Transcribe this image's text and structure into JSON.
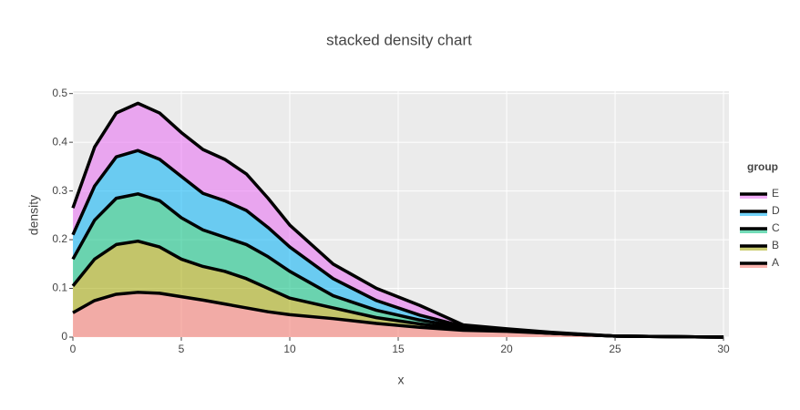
{
  "chart_data": {
    "type": "stacked-area",
    "title": "stacked density chart",
    "x_label": "x",
    "y_label": "density",
    "legend_title": "group",
    "x": [
      0,
      1,
      2,
      3,
      4,
      5,
      6,
      7,
      8,
      9,
      10,
      12,
      14,
      16,
      18,
      20,
      22,
      25,
      30
    ],
    "series": [
      {
        "name": "A",
        "color": "#f8766d",
        "values": [
          0.05,
          0.075,
          0.088,
          0.092,
          0.09,
          0.083,
          0.076,
          0.068,
          0.06,
          0.052,
          0.046,
          0.038,
          0.028,
          0.02,
          0.014,
          0.012,
          0.008,
          0.002,
          0
        ]
      },
      {
        "name": "B",
        "color": "#a3a500",
        "values": [
          0.055,
          0.085,
          0.102,
          0.105,
          0.095,
          0.077,
          0.069,
          0.067,
          0.06,
          0.048,
          0.034,
          0.022,
          0.012,
          0.007,
          0.003,
          0.001,
          0,
          0,
          0
        ]
      },
      {
        "name": "C",
        "color": "#00bf7d",
        "values": [
          0.055,
          0.08,
          0.095,
          0.097,
          0.095,
          0.085,
          0.075,
          0.07,
          0.07,
          0.065,
          0.055,
          0.025,
          0.015,
          0.008,
          0.003,
          0.001,
          0,
          0,
          0
        ]
      },
      {
        "name": "D",
        "color": "#00b0f6",
        "values": [
          0.05,
          0.07,
          0.085,
          0.089,
          0.085,
          0.085,
          0.075,
          0.075,
          0.07,
          0.06,
          0.05,
          0.035,
          0.02,
          0.01,
          0.002,
          0.001,
          0.001,
          0,
          0
        ]
      },
      {
        "name": "E",
        "color": "#e76bf3",
        "values": [
          0.055,
          0.08,
          0.09,
          0.097,
          0.095,
          0.09,
          0.09,
          0.085,
          0.075,
          0.06,
          0.045,
          0.03,
          0.025,
          0.02,
          0.003,
          0.002,
          0.001,
          0,
          0
        ]
      }
    ],
    "xlim": [
      0,
      30.25
    ],
    "xticks": [
      0,
      5,
      10,
      15,
      20,
      25,
      30
    ],
    "ylim": [
      0,
      0.505
    ],
    "yticks": [
      0,
      0.1,
      0.2,
      0.3,
      0.4,
      0.5
    ],
    "grid": true
  }
}
